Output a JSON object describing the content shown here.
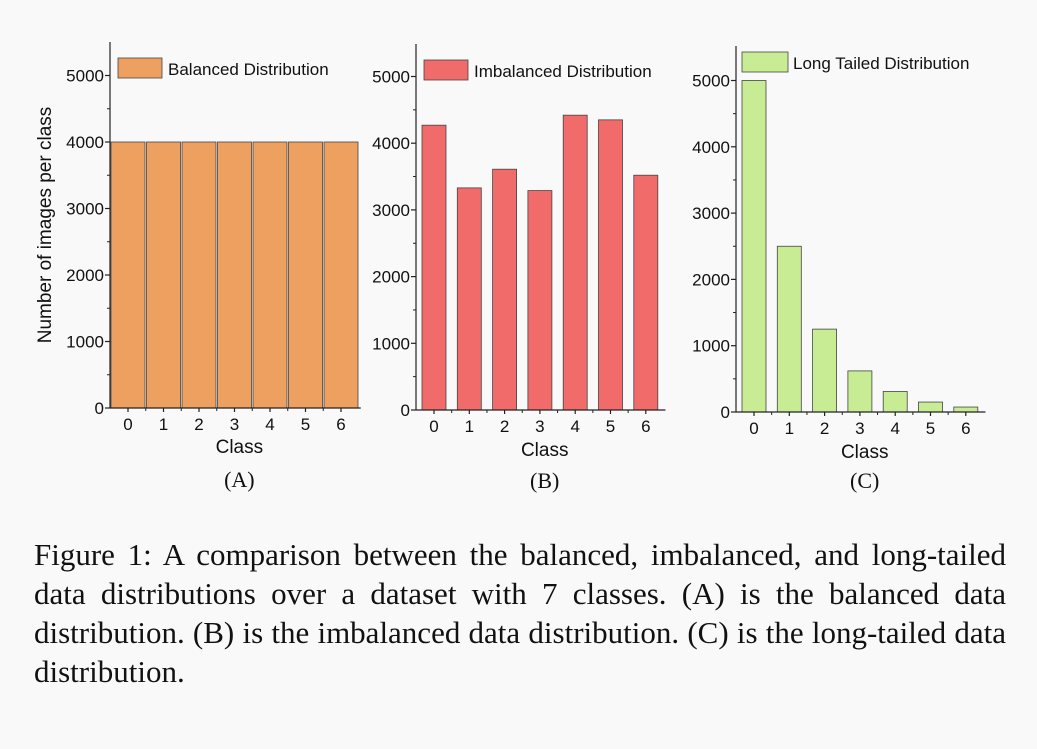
{
  "chart_data": [
    {
      "type": "bar",
      "panel_label": "(A)",
      "legend": "Balanced Distribution",
      "xlabel": "Class",
      "ylabel": "Number of images per class",
      "categories": [
        "0",
        "1",
        "2",
        "3",
        "4",
        "5",
        "6"
      ],
      "values": [
        4000,
        4000,
        4000,
        4000,
        4000,
        4000,
        4000
      ],
      "yticks": [
        0,
        1000,
        2000,
        3000,
        4000,
        5000
      ],
      "ylim": [
        0,
        5500
      ],
      "color": "#ee a060",
      "legend_position": "top-left"
    },
    {
      "type": "bar",
      "panel_label": "(B)",
      "legend": "Imbalanced Distribution",
      "xlabel": "Class",
      "ylabel": "",
      "categories": [
        "0",
        "1",
        "2",
        "3",
        "4",
        "5",
        "6"
      ],
      "values": [
        4270,
        3330,
        3610,
        3290,
        4420,
        4350,
        3520
      ],
      "yticks": [
        0,
        1000,
        2000,
        3000,
        4000,
        5000
      ],
      "ylim": [
        0,
        5500
      ],
      "color": "#f26b6b",
      "legend_position": "top-left"
    },
    {
      "type": "bar",
      "panel_label": "(C)",
      "legend": "Long Tailed Distribution",
      "xlabel": "Class",
      "ylabel": "",
      "categories": [
        "0",
        "1",
        "2",
        "3",
        "4",
        "5",
        "6"
      ],
      "values": [
        5000,
        2500,
        1250,
        620,
        310,
        150,
        75
      ],
      "yticks": [
        0,
        1000,
        2000,
        3000,
        4000,
        5000
      ],
      "ylim": [
        0,
        5500
      ],
      "color": "#c8ec94",
      "legend_position": "top-right"
    }
  ],
  "caption": "Figure 1: A comparison between the balanced, imbalanced, and long-tailed data distributions over a dataset with 7 classes. (A) is the balanced data distribution. (B) is the imbalanced data distribution. (C) is the long-tailed data distribution."
}
